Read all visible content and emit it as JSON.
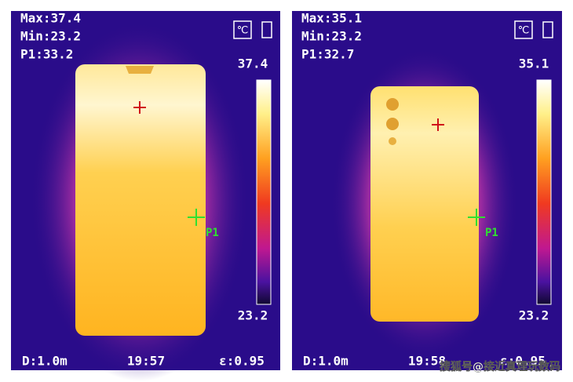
{
  "panels": [
    {
      "max": "Max:37.4",
      "min": "Min:23.2",
      "p1": "P1:33.2",
      "unit_icon": "℃",
      "scale_top": "37.4",
      "scale_bottom": "23.2",
      "marker": "P1",
      "distance": "D:1.0m",
      "time": "19:57",
      "emissivity": "ε:0.95"
    },
    {
      "max": "Max:35.1",
      "min": "Min:23.2",
      "p1": "P1:32.7",
      "unit_icon": "℃",
      "scale_top": "35.1",
      "scale_bottom": "23.2",
      "marker": "P1",
      "distance": "D:1.0m",
      "time": "19:58",
      "emissivity": "ε:0.95"
    }
  ],
  "watermark": "搜狐号@接近真理玩数码"
}
